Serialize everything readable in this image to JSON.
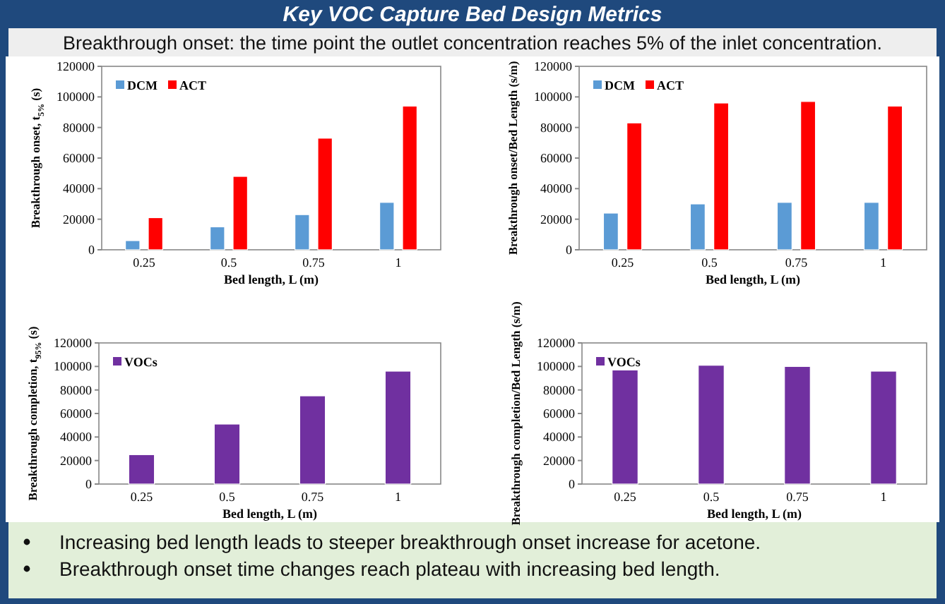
{
  "chart_data": [
    {
      "type": "other",
      "title": "Key VOC Capture Bed Design Metrics",
      "subtitle": "Breakthrough onset: the time point the outlet concentration reaches 5% of the inlet concentration.",
      "annotations": [
        "Increasing bed length leads to steeper breakthrough onset increase for acetone.",
        "Breakthrough onset time changes reach plateau with increasing bed length."
      ]
    },
    {
      "type": "bar",
      "categories": [
        "0.25",
        "0.5",
        "0.75",
        "1"
      ],
      "xlabel": "Bed length, L (m)",
      "ylabel": "Breakthrough onset, t$_{5%}$ (s)",
      "ylim": [
        0,
        120000
      ],
      "yticks": [
        0,
        20000,
        40000,
        60000,
        80000,
        100000,
        120000
      ],
      "legend": "top left",
      "series": [
        {
          "name": "DCM",
          "color": "#5b9bd5",
          "values": [
            6000,
            15000,
            23000,
            31000
          ]
        },
        {
          "name": "ACT",
          "color": "#ff0000",
          "values": [
            21000,
            48000,
            73000,
            94000
          ]
        }
      ]
    },
    {
      "type": "bar",
      "categories": [
        "0.25",
        "0.5",
        "0.75",
        "1"
      ],
      "xlabel": "Bed length, L (m)",
      "ylabel": "Breakthrough onset/Bed Length (s/m)",
      "ylim": [
        0,
        120000
      ],
      "yticks": [
        0,
        20000,
        40000,
        60000,
        80000,
        100000,
        120000
      ],
      "legend": "top left",
      "series": [
        {
          "name": "DCM",
          "color": "#5b9bd5",
          "values": [
            24000,
            30000,
            31000,
            31000
          ]
        },
        {
          "name": "ACT",
          "color": "#ff0000",
          "values": [
            83000,
            96000,
            97000,
            94000
          ]
        }
      ]
    },
    {
      "type": "bar",
      "categories": [
        "0.25",
        "0.5",
        "0.75",
        "1"
      ],
      "xlabel": "Bed length, L (m)",
      "ylabel": "Breakthrough completion, t$_{95%}$ (s)",
      "ylim": [
        0,
        120000
      ],
      "yticks": [
        0,
        20000,
        40000,
        60000,
        80000,
        100000,
        120000
      ],
      "legend": "top left",
      "series": [
        {
          "name": "VOCs",
          "color": "#7030a0",
          "values": [
            25000,
            51000,
            75000,
            96000
          ]
        }
      ]
    },
    {
      "type": "bar",
      "categories": [
        "0.25",
        "0.5",
        "0.75",
        "1"
      ],
      "xlabel": "Bed length, L (m)",
      "ylabel": "Breakthrough completion/Bed Length (s/m)",
      "ylim": [
        0,
        120000
      ],
      "yticks": [
        0,
        20000,
        40000,
        60000,
        80000,
        100000,
        120000
      ],
      "legend": "top left",
      "series": [
        {
          "name": "VOCs",
          "color": "#7030a0",
          "values": [
            97000,
            101000,
            100000,
            96000
          ]
        }
      ]
    }
  ]
}
